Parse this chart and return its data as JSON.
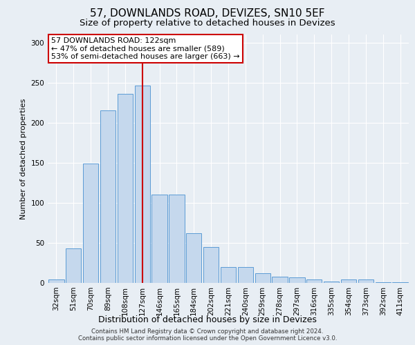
{
  "title": "57, DOWNLANDS ROAD, DEVIZES, SN10 5EF",
  "subtitle": "Size of property relative to detached houses in Devizes",
  "xlabel": "Distribution of detached houses by size in Devizes",
  "ylabel": "Number of detached properties",
  "categories": [
    "32sqm",
    "51sqm",
    "70sqm",
    "89sqm",
    "108sqm",
    "127sqm",
    "146sqm",
    "165sqm",
    "184sqm",
    "202sqm",
    "221sqm",
    "240sqm",
    "259sqm",
    "278sqm",
    "297sqm",
    "316sqm",
    "335sqm",
    "354sqm",
    "373sqm",
    "392sqm",
    "411sqm"
  ],
  "values": [
    4,
    43,
    149,
    215,
    236,
    246,
    110,
    110,
    62,
    45,
    20,
    20,
    12,
    8,
    7,
    4,
    2,
    4,
    4,
    1,
    1
  ],
  "bar_color": "#c5d8ed",
  "bar_edge_color": "#5b9bd5",
  "vline_x_index": 5,
  "vline_color": "#cc0000",
  "annotation_text": "57 DOWNLANDS ROAD: 122sqm\n← 47% of detached houses are smaller (589)\n53% of semi-detached houses are larger (663) →",
  "annotation_box_color": "#ffffff",
  "annotation_box_edge": "#cc0000",
  "ylim": [
    0,
    310
  ],
  "yticks": [
    0,
    50,
    100,
    150,
    200,
    250,
    300
  ],
  "bg_color": "#e8eef4",
  "plot_bg_color": "#e8eef4",
  "footnote": "Contains HM Land Registry data © Crown copyright and database right 2024.\nContains public sector information licensed under the Open Government Licence v3.0.",
  "title_fontsize": 11,
  "subtitle_fontsize": 9.5,
  "xlabel_fontsize": 9,
  "ylabel_fontsize": 8,
  "tick_fontsize": 7.5,
  "annotation_fontsize": 8
}
